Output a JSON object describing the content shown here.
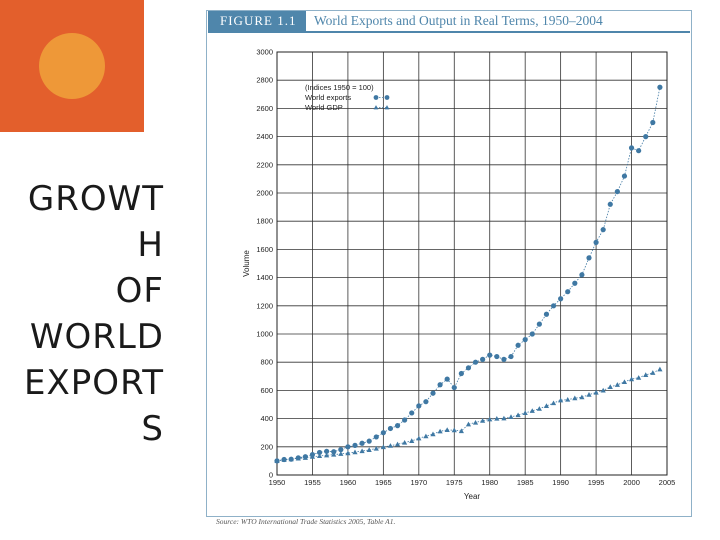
{
  "slide_title": [
    "GROWT",
    "H",
    "OF",
    "WORLD",
    "EXPORT",
    "S"
  ],
  "figure": {
    "label": "FIGURE 1.1",
    "title": "World Exports and Output in Real Terms, 1950–2004",
    "source": "Source: WTO International Trade Statistics 2005, Table A1."
  },
  "colors": {
    "accent": "#e35f2c",
    "dot": "#ee9838",
    "figure_blue": "#4f86ab",
    "series": "#3f78a3"
  },
  "chart_data": {
    "type": "line",
    "xlabel": "Year",
    "ylabel": "Volume",
    "xlim": [
      1950,
      2005
    ],
    "ylim": [
      0,
      3000
    ],
    "x_ticks": [
      "1950",
      "1955",
      "1960",
      "1965",
      "1970",
      "1975",
      "1980",
      "1985",
      "1990",
      "1995",
      "2000",
      "2005"
    ],
    "y_ticks": [
      "0",
      "200",
      "400",
      "600",
      "800",
      "1000",
      "1200",
      "1400",
      "1600",
      "1800",
      "2000",
      "2200",
      "2400",
      "2600",
      "2800",
      "3000"
    ],
    "grid": true,
    "legend": {
      "position": "top-left",
      "note": "(Indices 1950 = 100)"
    },
    "x": [
      1950,
      1951,
      1952,
      1953,
      1954,
      1955,
      1956,
      1957,
      1958,
      1959,
      1960,
      1961,
      1962,
      1963,
      1964,
      1965,
      1966,
      1967,
      1968,
      1969,
      1970,
      1971,
      1972,
      1973,
      1974,
      1975,
      1976,
      1977,
      1978,
      1979,
      1980,
      1981,
      1982,
      1983,
      1984,
      1985,
      1986,
      1987,
      1988,
      1989,
      1990,
      1991,
      1992,
      1993,
      1994,
      1995,
      1996,
      1997,
      1998,
      1999,
      2000,
      2001,
      2002,
      2003,
      2004
    ],
    "series": [
      {
        "name": "World exports",
        "marker": "circle",
        "values": [
          100,
          110,
          112,
          122,
          130,
          145,
          160,
          168,
          165,
          180,
          200,
          210,
          225,
          240,
          270,
          300,
          330,
          350,
          390,
          440,
          490,
          520,
          580,
          640,
          680,
          620,
          720,
          760,
          800,
          820,
          850,
          840,
          820,
          840,
          920,
          960,
          1000,
          1070,
          1140,
          1200,
          1250,
          1300,
          1360,
          1420,
          1540,
          1650,
          1740,
          1920,
          2010,
          2120,
          2320,
          2300,
          2400,
          2500,
          2750
        ]
      },
      {
        "name": "World GDP",
        "marker": "triangle",
        "values": [
          100,
          108,
          112,
          118,
          122,
          130,
          135,
          140,
          145,
          150,
          155,
          162,
          170,
          178,
          188,
          198,
          208,
          218,
          230,
          242,
          260,
          275,
          290,
          310,
          320,
          318,
          312,
          360,
          372,
          385,
          395,
          400,
          402,
          412,
          425,
          440,
          455,
          470,
          490,
          510,
          530,
          535,
          545,
          552,
          570,
          585,
          600,
          625,
          640,
          660,
          680,
          690,
          710,
          725,
          750
        ]
      }
    ]
  }
}
